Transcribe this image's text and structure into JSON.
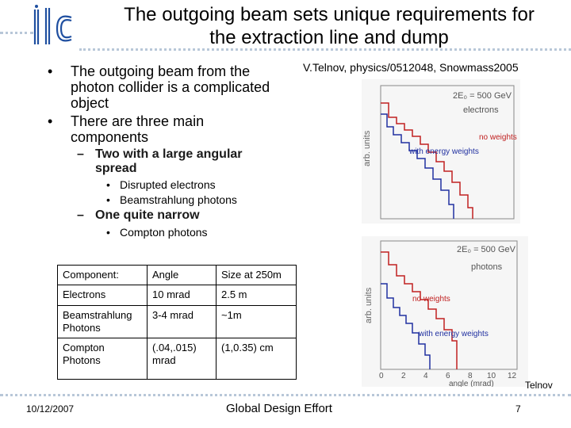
{
  "logo": {
    "text": "ilc"
  },
  "slide": {
    "title_line1": "The outgoing beam sets unique requirements for",
    "title_line2": "the extraction line and dump",
    "reference": "V.Telnov, physics/0512048, Snowmass2005"
  },
  "bullets": [
    "The outgoing beam from the photon collider is a complicated object",
    "There are three main components"
  ],
  "sub_bullets": {
    "large_angular": "Two with a large angular spread",
    "large_items": [
      "Disrupted electrons",
      "Beamstrahlung photons"
    ],
    "narrow": "One quite narrow",
    "narrow_items": [
      "Compton photons"
    ]
  },
  "table": {
    "header": [
      "Component:",
      "Angle",
      "Size at 250m"
    ],
    "rows": [
      [
        "Electrons",
        "10 mrad",
        "2.5 m"
      ],
      [
        "Beamstrahlung Photons",
        "3-4 mrad",
        "~1m"
      ],
      [
        "Compton Photons",
        "(.04,.015) mrad",
        "(1,0.35) cm"
      ]
    ]
  },
  "figure_top": {
    "energy_label": "2E₀ = 500 GeV",
    "particle": "electrons",
    "ylabel": "arb. units",
    "curve_no_weights": "no weights",
    "curve_weights": "with energy weights"
  },
  "figure_bottom": {
    "energy_label": "2E₀ = 500 GeV",
    "particle": "photons",
    "ylabel": "arb. units",
    "curve_no_weights": "no weights",
    "curve_weights": "with energy weights",
    "xlabel": "angle (mrad)",
    "xticks": [
      "0",
      "2",
      "4",
      "6",
      "8",
      "10",
      "12"
    ]
  },
  "credit": "Telnov",
  "footer": {
    "date": "10/12/2007",
    "center": "Global Design Effort",
    "page": "7"
  }
}
